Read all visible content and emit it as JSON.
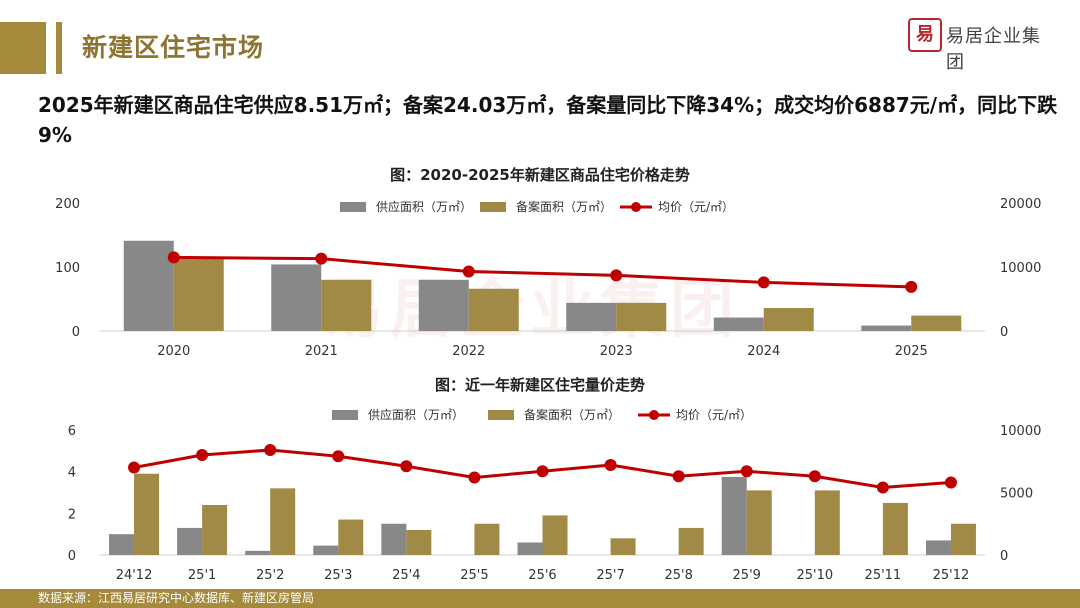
{
  "header": {
    "title": "新建区住宅市场",
    "logo_text": "易居企业集团",
    "logo_seal": "易"
  },
  "headline": "2025年新建区商品住宅供应8.51万㎡；备案24.03万㎡，备案量同比下降34%；成交均价6887元/㎡，同比下跌9%",
  "footer": {
    "source": "数据来源：江西易居研究中心数据库、新建区房管局"
  },
  "colors": {
    "supply": "#888888",
    "filed": "#a08a45",
    "price": "#c00000",
    "brand": "#a58a3c"
  },
  "chart_data": [
    {
      "type": "bar",
      "title": "图：2020-2025年新建区商品住宅价格走势",
      "categories": [
        "2020",
        "2021",
        "2022",
        "2023",
        "2024",
        "2025"
      ],
      "series": [
        {
          "name": "供应面积（万㎡）",
          "kind": "bar",
          "axis": "left",
          "values": [
            141,
            104,
            80,
            44,
            21,
            8.51
          ]
        },
        {
          "name": "备案面积（万㎡）",
          "kind": "bar",
          "axis": "left",
          "values": [
            115,
            80,
            66,
            44,
            36,
            24.03
          ]
        },
        {
          "name": "均价（元/㎡）",
          "kind": "line",
          "axis": "right",
          "values": [
            11500,
            11300,
            9300,
            8700,
            7600,
            6887
          ]
        }
      ],
      "ylim_left": [
        0,
        200
      ],
      "yticks_left": [
        "0",
        "100",
        "200"
      ],
      "ylim_right": [
        0,
        20000
      ],
      "yticks_right": [
        "0",
        "10000",
        "20000"
      ],
      "legend_position": "top-center",
      "grid": false
    },
    {
      "type": "bar",
      "title": "图：近一年新建区住宅量价走势",
      "categories": [
        "24'12",
        "25'1",
        "25'2",
        "25'3",
        "25'4",
        "25'5",
        "25'6",
        "25'7",
        "25'8",
        "25'9",
        "25'10",
        "25'11",
        "25'12"
      ],
      "series": [
        {
          "name": "供应面积（万㎡）",
          "kind": "bar",
          "axis": "left",
          "values": [
            1.0,
            1.3,
            0.2,
            0.45,
            1.5,
            0,
            0.6,
            0,
            0,
            3.75,
            0,
            0,
            0.7
          ]
        },
        {
          "name": "备案面积（万㎡）",
          "kind": "bar",
          "axis": "left",
          "values": [
            3.9,
            2.4,
            3.2,
            1.7,
            1.2,
            1.5,
            1.9,
            0.8,
            1.3,
            3.1,
            3.1,
            2.5,
            1.5
          ]
        },
        {
          "name": "均价（元/㎡）",
          "kind": "line",
          "axis": "right",
          "values": [
            7000,
            8000,
            8400,
            7900,
            7100,
            6200,
            6700,
            7200,
            6300,
            6700,
            6300,
            5400,
            5800
          ]
        }
      ],
      "ylim_left": [
        0,
        6
      ],
      "yticks_left": [
        "0",
        "2",
        "4",
        "6"
      ],
      "ylim_right": [
        0,
        10000
      ],
      "yticks_right": [
        "0",
        "5000",
        "10000"
      ],
      "legend_position": "top-center",
      "grid": false
    }
  ]
}
